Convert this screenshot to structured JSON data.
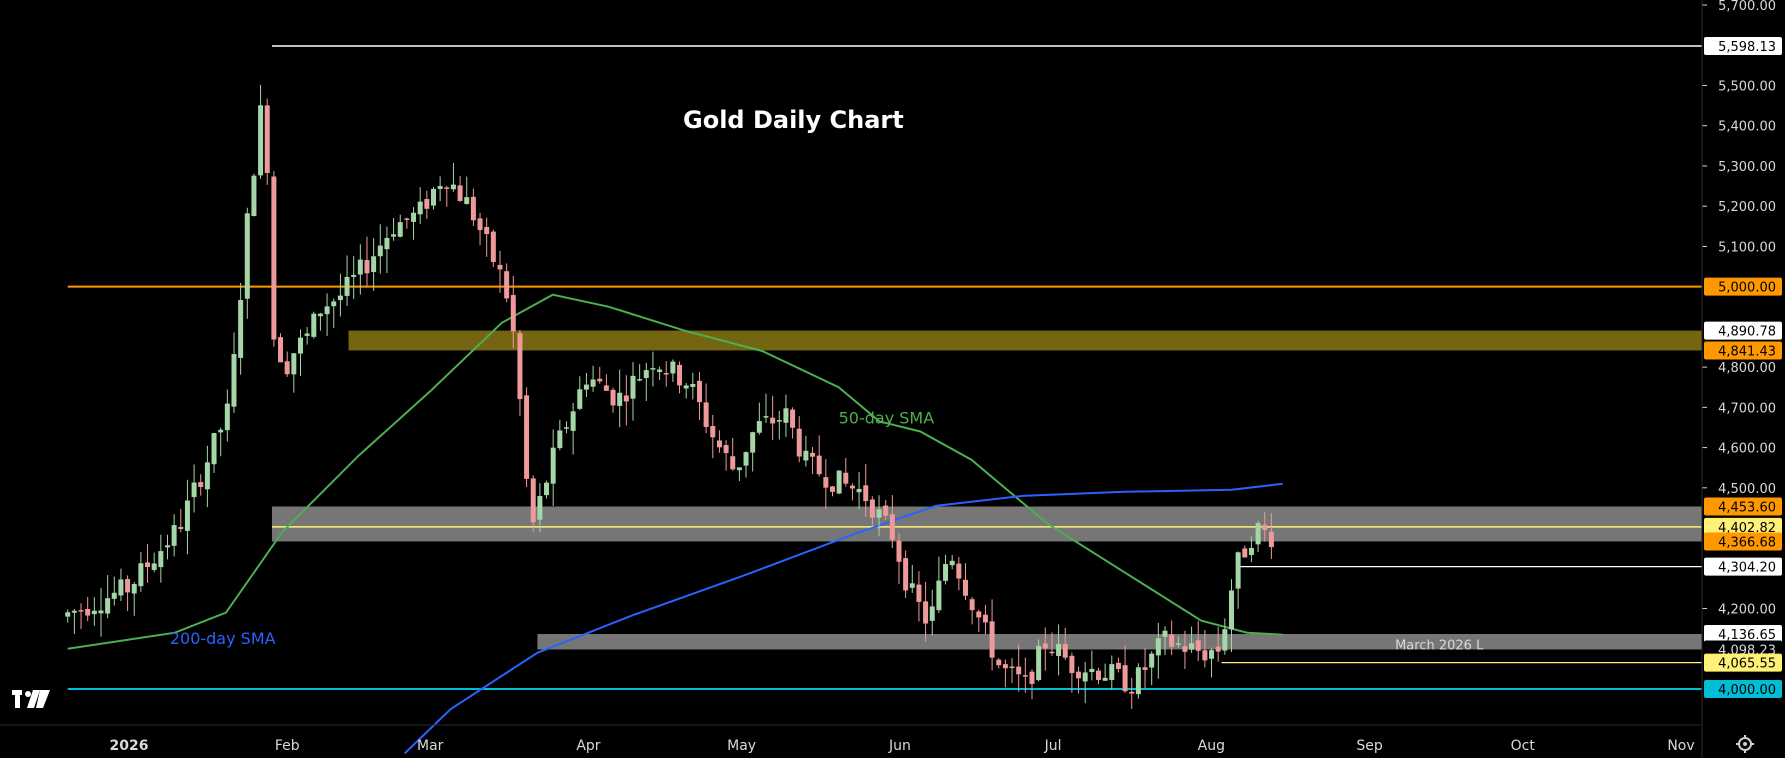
{
  "chart_data": {
    "type": "candlestick",
    "title": "Gold Daily Chart",
    "colors": {
      "background": "#000000",
      "up": "#a5d6a7",
      "down": "#ef9a9a",
      "sma50": "#4caf50",
      "sma200": "#2962ff",
      "resistance_line": "#ff9800",
      "support_line": "#00bcd4",
      "zone_gray": "#9e9e9e",
      "zone_olive": "#7a6a14",
      "yellow_line": "#fff176",
      "white_line": "#ffffff"
    },
    "x_axis": {
      "labels": [
        {
          "text": "2026",
          "date": "2026-01-01"
        },
        {
          "text": "Feb",
          "date": "2026-02-01"
        },
        {
          "text": "Mar",
          "date": "2026-03-01"
        },
        {
          "text": "Apr",
          "date": "2026-04-01"
        },
        {
          "text": "May",
          "date": "2026-05-01"
        },
        {
          "text": "Jun",
          "date": "2026-06-01"
        },
        {
          "text": "Jul",
          "date": "2026-07-01"
        },
        {
          "text": "Aug",
          "date": "2026-08-01"
        },
        {
          "text": "Sep",
          "date": "2026-09-01"
        },
        {
          "text": "Oct",
          "date": "2026-10-01"
        },
        {
          "text": "Nov",
          "date": "2026-11-01"
        }
      ]
    },
    "y_axis": {
      "ylim": [
        3830,
        5720
      ],
      "ticks": [
        "5,700.00",
        "5,500.00",
        "5,400.00",
        "5,300.00",
        "5,200.00",
        "5,100.00",
        "4,800.00",
        "4,700.00",
        "4,600.00",
        "4,500.00",
        "4,200.00"
      ]
    },
    "price_tags": [
      {
        "text": "5,598.13",
        "value": 5598.13,
        "bg": "#ffffff",
        "fg": "#000000"
      },
      {
        "text": "5,000.00",
        "value": 5000,
        "bg": "#ff9800",
        "fg": "#000000"
      },
      {
        "text": "4,890.78",
        "value": 4890.78,
        "bg": "#ffffff",
        "fg": "#000000"
      },
      {
        "text": "4,841.43",
        "value": 4841.43,
        "bg": "#ff9800",
        "fg": "#000000"
      },
      {
        "text": "4,453.60",
        "value": 4453.6,
        "bg": "#ff9800",
        "fg": "#000000"
      },
      {
        "text": "4,402.82",
        "value": 4402.82,
        "bg": "#fff176",
        "fg": "#000000"
      },
      {
        "text": "4,366.68",
        "value": 4366.68,
        "bg": "#ff9800",
        "fg": "#000000"
      },
      {
        "text": "4,304.20",
        "value": 4304.2,
        "bg": "#ffffff",
        "fg": "#000000"
      },
      {
        "text": "4,136.65",
        "value": 4136.65,
        "bg": "#ffffff",
        "fg": "#000000"
      },
      {
        "text": "4,098.23",
        "value": 4098.23,
        "bg": "#000000",
        "fg": "#d9d9d9"
      },
      {
        "text": "4,065.55",
        "value": 4065.55,
        "bg": "#fff176",
        "fg": "#000000"
      },
      {
        "text": "4,000.00",
        "value": 4000,
        "bg": "#00bcd4",
        "fg": "#000000"
      }
    ],
    "levels": [
      {
        "value": 5598.13,
        "from": "2026-01-29",
        "color": "#ffffff",
        "width": 1.5
      },
      {
        "value": 5000,
        "from": "2025-12-20",
        "color": "#ff9800",
        "width": 2
      },
      {
        "value": 4402.82,
        "from": "2026-01-29",
        "color": "#fff176",
        "width": 1.5
      },
      {
        "value": 4304.2,
        "from": "2026-08-06",
        "color": "#ffffff",
        "width": 1.2
      },
      {
        "value": 4065.55,
        "from": "2026-08-03",
        "color": "#fff176",
        "width": 1.2
      },
      {
        "value": 4000,
        "from": "2025-12-20",
        "color": "#00bcd4",
        "width": 2
      }
    ],
    "zones": [
      {
        "top": 4890.78,
        "bottom": 4841.43,
        "from": "2026-02-13",
        "color": "#7a6a14",
        "opacity": 0.95
      },
      {
        "top": 4453.6,
        "bottom": 4366.68,
        "from": "2026-01-29",
        "color": "#9e9e9e",
        "opacity": 0.75
      },
      {
        "top": 4136.65,
        "bottom": 4098.23,
        "from": "2026-03-22",
        "color": "#9e9e9e",
        "opacity": 0.75
      }
    ],
    "annotations": [
      {
        "text": "50-day SMA",
        "date": "2026-05-20",
        "value": 4660,
        "color": "#4caf50"
      },
      {
        "text": "200-day SMA",
        "date": "2026-01-09",
        "value": 4112,
        "color": "#2962ff"
      },
      {
        "text": "March 2026 L",
        "date": "2026-09-06",
        "value": 4098.23,
        "color": "#d9d9d9"
      }
    ],
    "sma50": [
      [
        "2025-12-20",
        4100
      ],
      [
        "2026-01-10",
        4140
      ],
      [
        "2026-01-20",
        4190
      ],
      [
        "2026-01-31",
        4390
      ],
      [
        "2026-02-15",
        4580
      ],
      [
        "2026-03-01",
        4740
      ],
      [
        "2026-03-15",
        4910
      ],
      [
        "2026-03-25",
        4980
      ],
      [
        "2026-04-05",
        4950
      ],
      [
        "2026-04-20",
        4890
      ],
      [
        "2026-05-05",
        4840
      ],
      [
        "2026-05-20",
        4750
      ],
      [
        "2026-05-28",
        4665
      ],
      [
        "2026-06-05",
        4640
      ],
      [
        "2026-06-15",
        4570
      ],
      [
        "2026-06-30",
        4410
      ],
      [
        "2026-07-15",
        4290
      ],
      [
        "2026-07-30",
        4170
      ],
      [
        "2026-08-08",
        4140
      ],
      [
        "2026-08-15",
        4135
      ]
    ],
    "sma200": [
      [
        "2026-02-24",
        3840
      ],
      [
        "2026-03-05",
        3950
      ],
      [
        "2026-03-22",
        4090
      ],
      [
        "2026-04-10",
        4185
      ],
      [
        "2026-05-01",
        4280
      ],
      [
        "2026-05-22",
        4380
      ],
      [
        "2026-06-08",
        4455
      ],
      [
        "2026-06-25",
        4480
      ],
      [
        "2026-07-15",
        4490
      ],
      [
        "2026-08-05",
        4495
      ],
      [
        "2026-08-15",
        4510
      ]
    ],
    "candles_anchor": {
      "dates": [
        "2025-12-20",
        "2026-01-02",
        "2026-01-12",
        "2026-01-22",
        "2026-01-26",
        "2026-01-28",
        "2026-01-29",
        "2026-01-30",
        "2026-02-02",
        "2026-02-04",
        "2026-02-06",
        "2026-02-09",
        "2026-02-13",
        "2026-02-18",
        "2026-02-23",
        "2026-02-28",
        "2026-03-05",
        "2026-03-10",
        "2026-03-17",
        "2026-03-19",
        "2026-03-22",
        "2026-03-27",
        "2026-04-02",
        "2026-04-08",
        "2026-04-15",
        "2026-04-22",
        "2026-04-27",
        "2026-05-01",
        "2026-05-05",
        "2026-05-11",
        "2026-05-15",
        "2026-05-20",
        "2026-05-26",
        "2026-06-01",
        "2026-06-04",
        "2026-06-08",
        "2026-06-12",
        "2026-06-17",
        "2026-06-22",
        "2026-06-27",
        "2026-07-01",
        "2026-07-06",
        "2026-07-13",
        "2026-07-18",
        "2026-07-24",
        "2026-08-01",
        "2026-08-04",
        "2026-08-07",
        "2026-08-11",
        "2026-08-14"
      ],
      "closes": [
        4180,
        4250,
        4400,
        4700,
        5230,
        5420,
        5560,
        4900,
        4800,
        4850,
        4870,
        4950,
        4980,
        5060,
        5150,
        5180,
        5280,
        5200,
        5000,
        4850,
        4390,
        4600,
        4780,
        4720,
        4820,
        4760,
        4620,
        4540,
        4650,
        4680,
        4560,
        4520,
        4490,
        4380,
        4250,
        4160,
        4350,
        4200,
        4050,
        4010,
        4120,
        4060,
        4040,
        4010,
        4120,
        4090,
        4100,
        4300,
        4400,
        4380
      ]
    }
  }
}
